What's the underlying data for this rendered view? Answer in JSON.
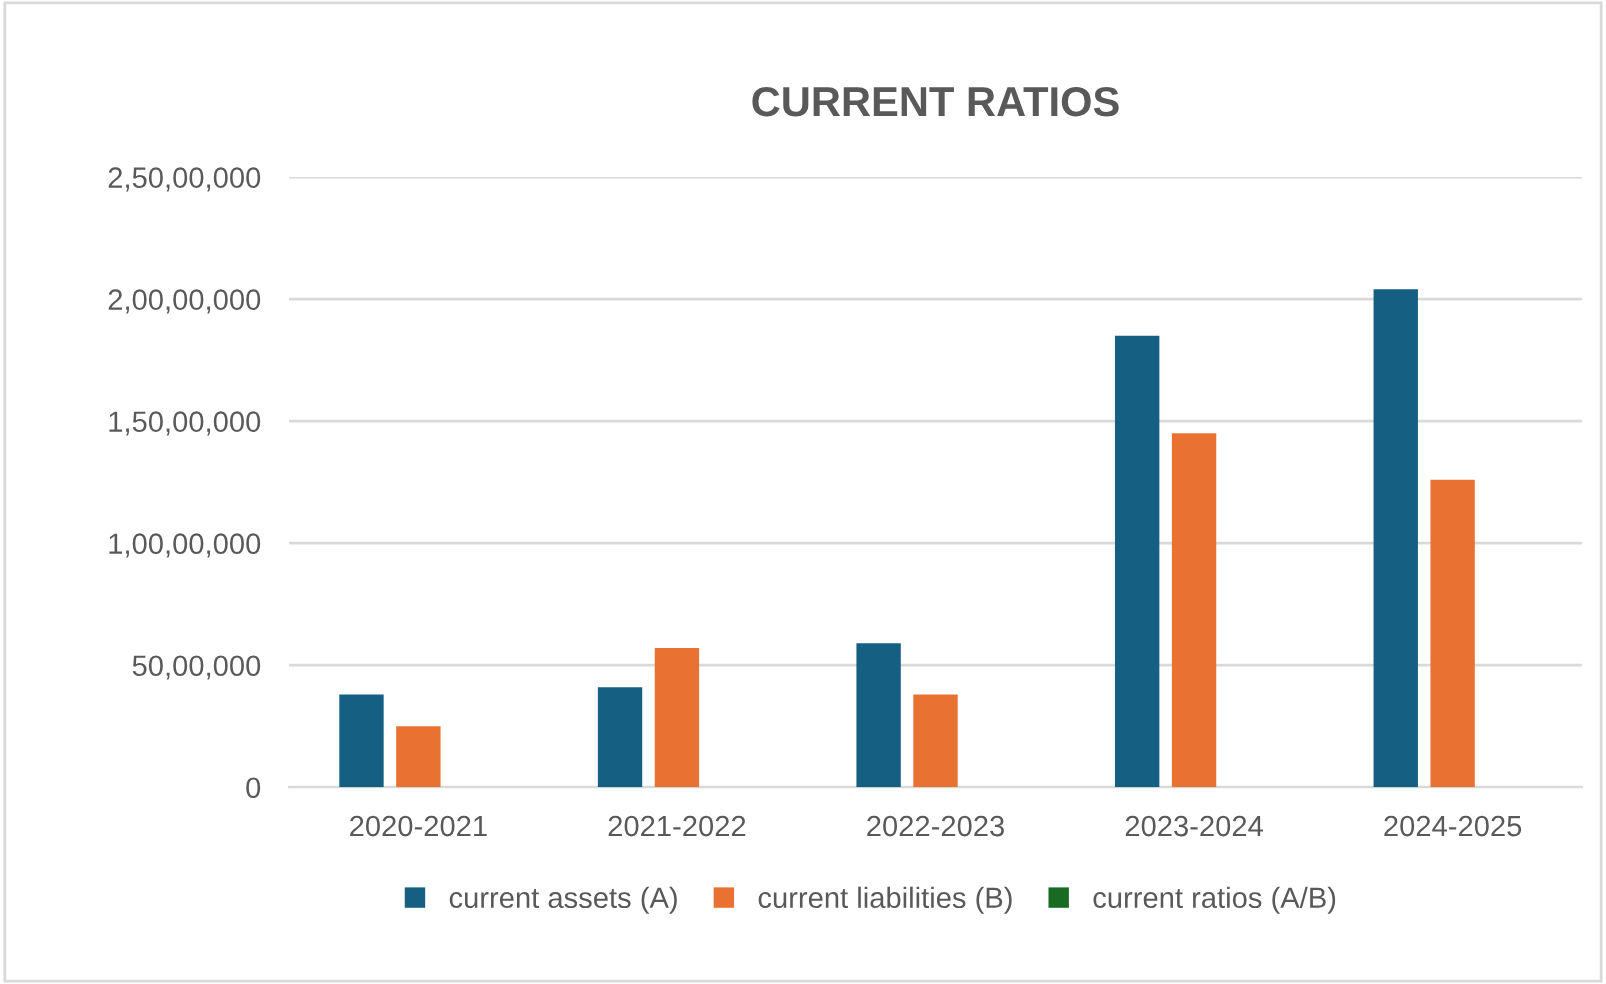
{
  "chart_data": {
    "type": "bar",
    "title": "CURRENT RATIOS",
    "categories": [
      "2020-2021",
      "2021-2022",
      "2022-2023",
      "2023-2024",
      "2024-2025"
    ],
    "series": [
      {
        "name": "current assets (A)",
        "color": "#156082",
        "values": [
          3800000,
          4100000,
          5900000,
          18500000,
          20400000
        ]
      },
      {
        "name": "current liabilities (B)",
        "color": "#e97132",
        "values": [
          2500000,
          5700000,
          3800000,
          14500000,
          12600000
        ]
      },
      {
        "name": "current ratios (A/B)",
        "color": "#196b24",
        "values": [
          0,
          0,
          0,
          0,
          0
        ]
      }
    ],
    "ylim": [
      0,
      25000000
    ],
    "yticks": [
      0,
      {
        "value": 5000000,
        "label": "50,00,000"
      },
      {
        "value": 10000000,
        "label": "1,00,00,000"
      },
      {
        "value": 15000000,
        "label": "1,50,00,000"
      },
      {
        "value": 20000000,
        "label": "2,00,00,000"
      },
      {
        "value": 25000000,
        "label": "2,50,00,000"
      }
    ],
    "grid": "y",
    "legend": "bottom"
  }
}
